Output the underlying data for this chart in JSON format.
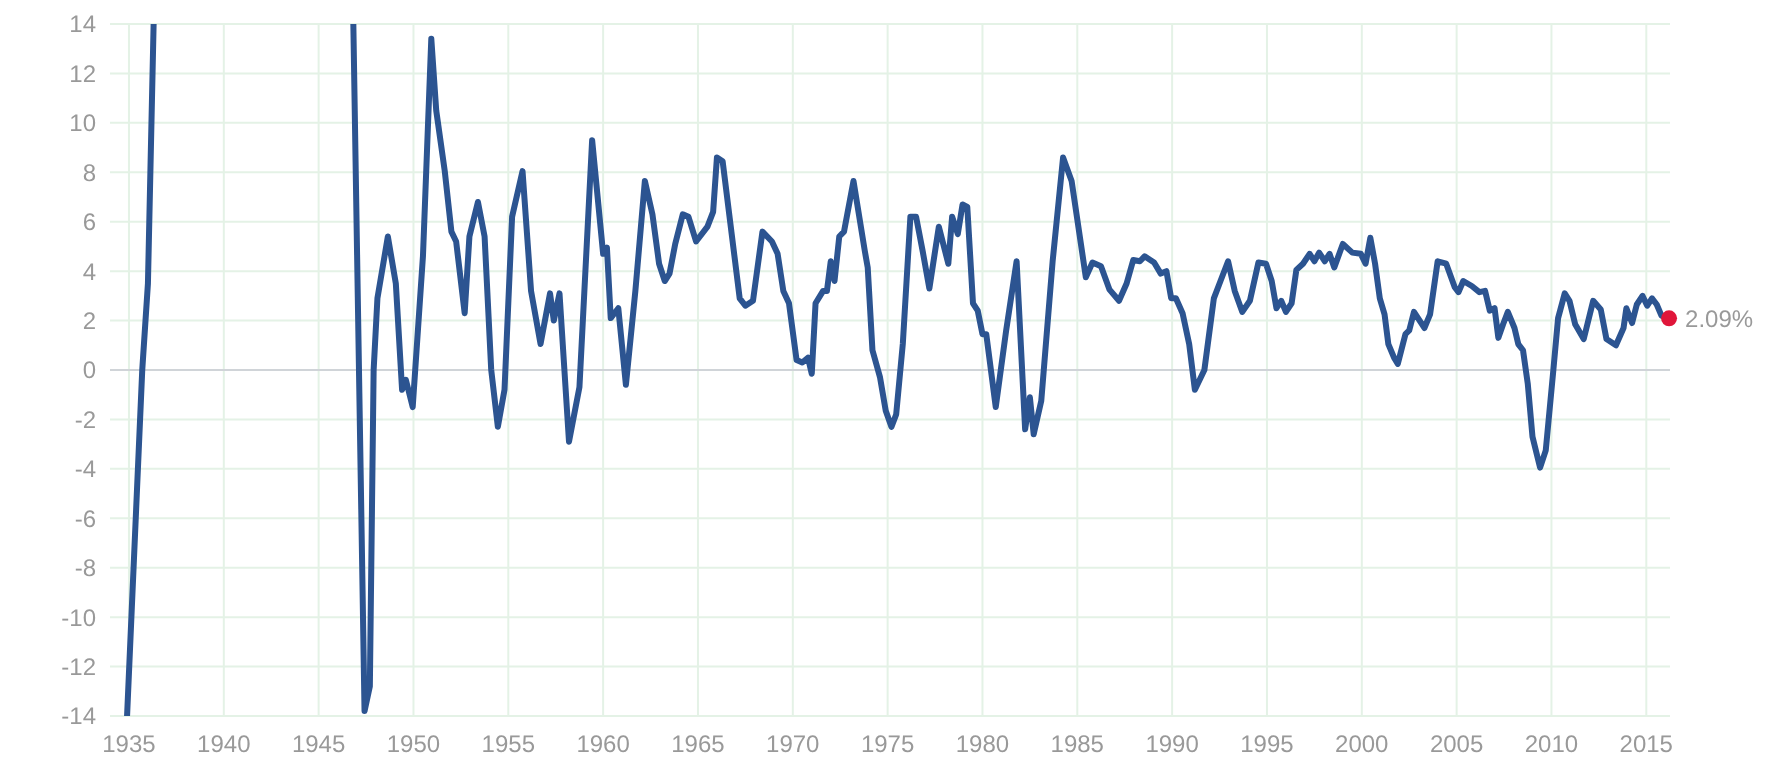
{
  "chart_data": {
    "type": "line",
    "xlim": [
      1934,
      2016.25
    ],
    "xticks": [
      1935,
      1940,
      1945,
      1950,
      1955,
      1960,
      1965,
      1970,
      1975,
      1980,
      1985,
      1990,
      1995,
      2000,
      2005,
      2010,
      2015
    ],
    "ylim": [
      -14,
      14
    ],
    "yticks": [
      -14,
      -12,
      -10,
      -8,
      -6,
      -4,
      -2,
      0,
      2,
      4,
      6,
      8,
      10,
      12,
      14
    ],
    "grid": true,
    "ref_lines": [
      {
        "axis": "y",
        "value": 0,
        "color": "#d0d4d8"
      }
    ],
    "annotations": [
      {
        "text": "2.09%",
        "x": 2016.2,
        "y": 2.09
      }
    ],
    "series": [
      {
        "color": "#2c5491",
        "x": [
          1934.9,
          1935.7,
          1936.0,
          1936.3,
          1941,
          1946.83,
          1947.42,
          1947.7,
          1947.9,
          1948.1,
          1948.65,
          1949.07,
          1949.4,
          1949.6,
          1949.96,
          1950.5,
          1950.94,
          1951.2,
          1951.65,
          1952.0,
          1952.25,
          1952.7,
          1952.95,
          1953.4,
          1953.75,
          1954.1,
          1954.45,
          1954.8,
          1955.2,
          1955.75,
          1956.2,
          1956.7,
          1957.2,
          1957.4,
          1957.7,
          1958.2,
          1958.75,
          1959.42,
          1960.0,
          1960.2,
          1960.4,
          1960.8,
          1961.2,
          1961.7,
          1962.2,
          1962.6,
          1962.95,
          1963.25,
          1963.5,
          1963.8,
          1964.2,
          1964.5,
          1964.9,
          1965.5,
          1965.8,
          1966.0,
          1966.3,
          1967.2,
          1967.5,
          1967.9,
          1968.4,
          1968.9,
          1969.2,
          1969.5,
          1969.8,
          1970.2,
          1970.5,
          1970.8,
          1971.0,
          1971.2,
          1971.6,
          1971.8,
          1972.0,
          1972.2,
          1972.45,
          1972.7,
          1973.2,
          1973.8,
          1973.95,
          1974.2,
          1974.6,
          1974.9,
          1975.2,
          1975.45,
          1975.8,
          1976.2,
          1976.5,
          1976.85,
          1977.2,
          1977.7,
          1978.2,
          1978.4,
          1978.7,
          1978.95,
          1979.2,
          1979.5,
          1979.75,
          1980.0,
          1980.2,
          1980.7,
          1981.25,
          1981.8,
          1982.25,
          1982.5,
          1982.7,
          1983.1,
          1983.7,
          1984.25,
          1984.7,
          1985.45,
          1985.8,
          1986.25,
          1986.7,
          1987.2,
          1987.6,
          1987.95,
          1988.3,
          1988.55,
          1989.05,
          1989.4,
          1989.7,
          1989.95,
          1990.2,
          1990.55,
          1990.9,
          1991.2,
          1991.7,
          1992.2,
          1992.55,
          1992.95,
          1993.3,
          1993.7,
          1994.1,
          1994.55,
          1994.95,
          1995.25,
          1995.5,
          1995.75,
          1996.0,
          1996.3,
          1996.55,
          1996.9,
          1997.25,
          1997.5,
          1997.75,
          1998.05,
          1998.3,
          1998.55,
          1999.0,
          1999.5,
          1999.95,
          2000.2,
          2000.45,
          2000.7,
          2000.95,
          2001.2,
          2001.4,
          2001.7,
          2001.9,
          2002.3,
          2002.5,
          2002.75,
          2003.3,
          2003.6,
          2004.0,
          2004.45,
          2004.9,
          2005.1,
          2005.35,
          2005.8,
          2006.2,
          2006.5,
          2006.75,
          2007.0,
          2007.2,
          2007.45,
          2007.7,
          2008.05,
          2008.25,
          2008.5,
          2008.75,
          2009.0,
          2009.4,
          2009.7,
          2010.1,
          2010.35,
          2010.7,
          2010.95,
          2011.25,
          2011.7,
          2012.2,
          2012.6,
          2012.9,
          2013.4,
          2013.8,
          2013.95,
          2014.25,
          2014.5,
          2014.8,
          2015.05,
          2015.3,
          2015.55,
          2015.8,
          2016.2
        ],
        "values": [
          -14,
          0,
          3.5,
          14,
          null,
          14,
          -13.8,
          -12.8,
          0,
          2.9,
          5.4,
          3.5,
          -0.8,
          -0.4,
          -1.5,
          4.6,
          13.4,
          10.5,
          8.05,
          5.6,
          5.2,
          2.3,
          5.4,
          6.8,
          5.4,
          0,
          -2.3,
          -0.8,
          6.2,
          8.05,
          3.2,
          1.05,
          3.1,
          2.0,
          3.1,
          -2.9,
          -0.7,
          9.3,
          4.7,
          4.95,
          2.1,
          2.5,
          -0.6,
          3.2,
          7.65,
          6.3,
          4.3,
          3.6,
          3.9,
          5.1,
          6.3,
          6.2,
          5.2,
          5.8,
          6.4,
          8.6,
          8.45,
          2.9,
          2.6,
          2.8,
          5.6,
          5.2,
          4.7,
          3.2,
          2.7,
          0.4,
          0.3,
          0.5,
          -0.15,
          2.7,
          3.2,
          3.2,
          4.4,
          3.6,
          5.4,
          5.6,
          7.65,
          4.8,
          4.15,
          0.8,
          -0.3,
          -1.65,
          -2.3,
          -1.8,
          1.05,
          6.2,
          6.2,
          4.8,
          3.3,
          5.8,
          4.3,
          6.2,
          5.5,
          6.7,
          6.6,
          2.7,
          2.4,
          1.45,
          1.45,
          -1.5,
          1.6,
          4.4,
          -2.4,
          -1.1,
          -2.6,
          -1.25,
          4.4,
          8.6,
          7.65,
          3.75,
          4.35,
          4.2,
          3.25,
          2.8,
          3.5,
          4.45,
          4.4,
          4.6,
          4.35,
          3.9,
          4.0,
          2.9,
          2.9,
          2.3,
          1.05,
          -0.8,
          0,
          2.9,
          3.6,
          4.4,
          3.2,
          2.35,
          2.8,
          4.35,
          4.3,
          3.6,
          2.5,
          2.8,
          2.35,
          2.7,
          4.05,
          4.3,
          4.7,
          4.4,
          4.75,
          4.4,
          4.7,
          4.15,
          5.1,
          4.75,
          4.7,
          4.3,
          5.35,
          4.3,
          2.9,
          2.25,
          1.05,
          0.5,
          0.25,
          1.45,
          1.6,
          2.35,
          1.7,
          2.25,
          4.4,
          4.3,
          3.35,
          3.15,
          3.6,
          3.4,
          3.15,
          3.2,
          2.4,
          2.5,
          1.3,
          1.85,
          2.35,
          1.7,
          1.05,
          0.8,
          -0.55,
          -2.7,
          -3.95,
          -3.25,
          0,
          2.1,
          3.1,
          2.8,
          1.85,
          1.25,
          2.8,
          2.45,
          1.25,
          1.0,
          1.7,
          2.5,
          1.9,
          2.65,
          3.0,
          2.6,
          2.9,
          2.65,
          2.2,
          2.09
        ]
      },
      {
        "type": "scatter",
        "color": "#e0163a",
        "marker": "circle",
        "x": [
          2016.2
        ],
        "values": [
          2.09
        ]
      }
    ]
  }
}
